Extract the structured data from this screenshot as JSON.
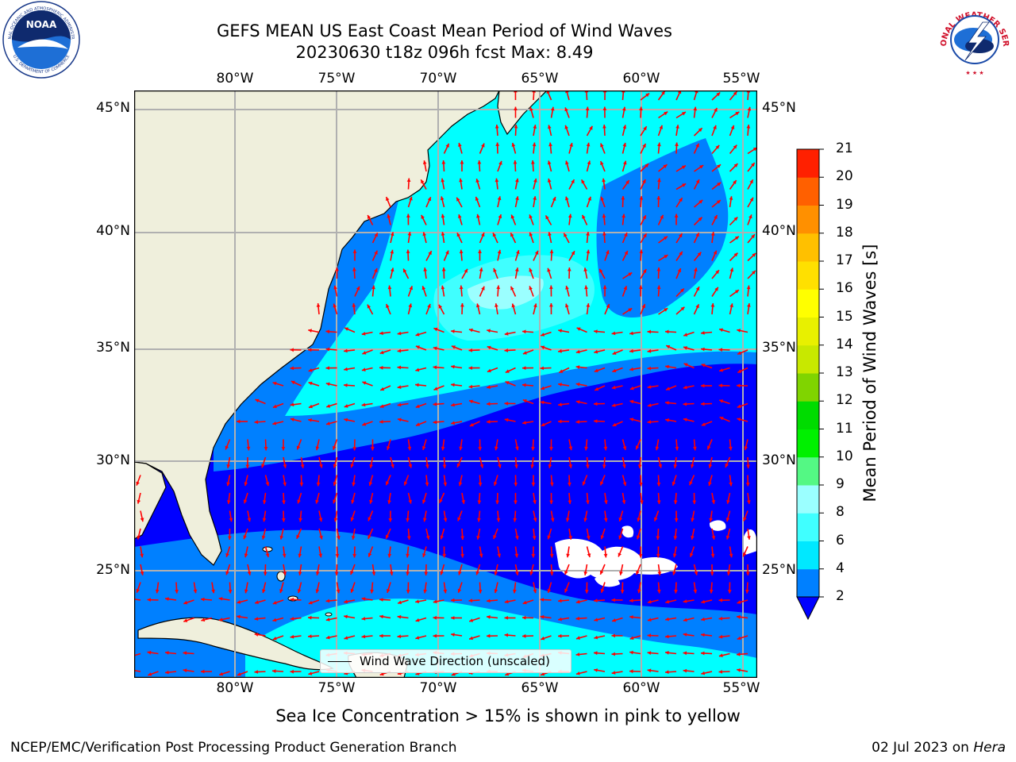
{
  "header": {
    "title": "GEFS MEAN US East Coast Mean Period of Wind Waves",
    "subtitle": "20230630 t18z 096h fcst   Max: 8.49"
  },
  "logos": {
    "left": {
      "name": "NOAA",
      "arc_text": "NATIONAL OCEANIC AND ATMOSPHERIC ADMINISTRATION",
      "bottom_text": "U.S. DEPARTMENT OF COMMERCE"
    },
    "right": {
      "name": "NATIONAL WEATHER SERVICE"
    }
  },
  "map": {
    "lon_ticks": [
      "80°W",
      "75°W",
      "70°W",
      "65°W",
      "60°W",
      "55°W"
    ],
    "lat_ticks": [
      "45°N",
      "40°N",
      "35°N",
      "30°N",
      "25°N"
    ],
    "lon_range": [
      -85,
      -54
    ],
    "lat_range": [
      20.5,
      46
    ],
    "grid": true,
    "land_color": "#efefdc",
    "vector_color": "#ff0000"
  },
  "legend": {
    "label": "Wind Wave Direction (unscaled)"
  },
  "colorbar": {
    "title": "Mean Period of Wind Waves [s]",
    "levels": [
      "2",
      "4",
      "6",
      "8",
      "9",
      "10",
      "11",
      "12",
      "13",
      "14",
      "15",
      "16",
      "17",
      "18",
      "19",
      "20",
      "21"
    ],
    "colors": [
      "#0080ff",
      "#00e8ff",
      "#40ffff",
      "#9bffff",
      "#54f884",
      "#00f000",
      "#00dc00",
      "#80d400",
      "#c8e800",
      "#e8f000",
      "#ffff00",
      "#ffe000",
      "#ffc000",
      "#ff9000",
      "#ff6000",
      "#ff2000"
    ],
    "under_color": "#0000ff"
  },
  "footer": {
    "note": "Sea Ice Concentration > 15% is shown in pink to yellow",
    "credit": "NCEP/EMC/Verification Post Processing Product Generation Branch",
    "date_prefix": "02 Jul 2023 on ",
    "machine": "Hera"
  }
}
